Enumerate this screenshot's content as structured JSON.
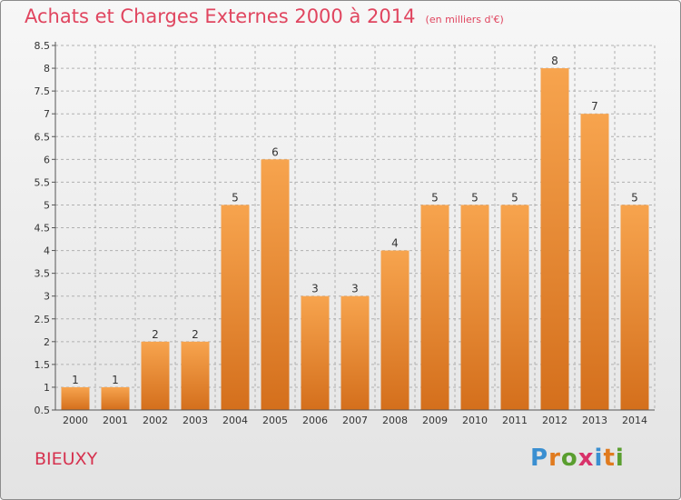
{
  "header": {
    "title": "Achats et Charges Externes 2000 à 2014",
    "subtitle": "(en milliers d'€)"
  },
  "footer": {
    "place": "BIEUXY",
    "logo_letters": [
      "P",
      "r",
      "o",
      "x",
      "i",
      "t",
      "i"
    ],
    "logo_colors": [
      "#3a8fd1",
      "#e07b1f",
      "#5a9e2f",
      "#d8326a",
      "#3a8fd1",
      "#e07b1f",
      "#5a9e2f"
    ]
  },
  "colors": {
    "bar_top": "#f7a44e",
    "bar_bottom": "#d46f1c",
    "grid": "#b0b0b0",
    "axis": "#555555",
    "title": "#e0455f"
  },
  "chart_data": {
    "type": "bar",
    "title": "Achats et Charges Externes 2000 à 2014",
    "subtitle": "(en milliers d'€)",
    "categories": [
      "2000",
      "2001",
      "2002",
      "2003",
      "2004",
      "2005",
      "2006",
      "2007",
      "2008",
      "2009",
      "2010",
      "2011",
      "2012",
      "2013",
      "2014"
    ],
    "values": [
      1,
      1,
      2,
      2,
      5,
      6,
      3,
      3,
      4,
      5,
      5,
      5,
      8,
      7,
      5
    ],
    "data_labels": [
      "1",
      "1",
      "2",
      "2",
      "5",
      "6",
      "3",
      "3",
      "4",
      "5",
      "5",
      "5",
      "8",
      "7",
      "5"
    ],
    "ylim": [
      0.5,
      8.5
    ],
    "yticks": [
      0.5,
      1,
      1.5,
      2,
      2.5,
      3,
      3.5,
      4,
      4.5,
      5,
      5.5,
      6,
      6.5,
      7,
      7.5,
      8,
      8.5
    ],
    "ytick_labels": [
      "0.5",
      "1",
      "1.5",
      "2",
      "2.5",
      "3",
      "3.5",
      "4",
      "4.5",
      "5",
      "5.5",
      "6",
      "6.5",
      "7",
      "7.5",
      "8",
      "8.5"
    ],
    "grid": true,
    "legend": "none"
  }
}
